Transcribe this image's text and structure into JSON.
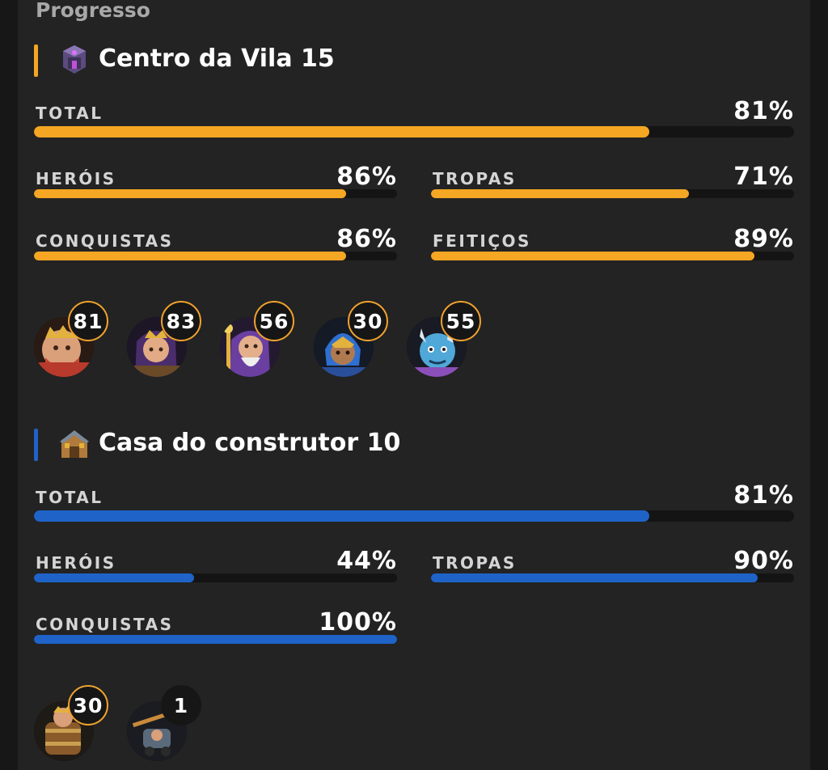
{
  "heading": "Progresso",
  "colors": {
    "village_accent": "#f5a623",
    "builder_accent": "#1f63c8"
  },
  "village": {
    "icon": "town-hall-icon",
    "title": "Centro da Vila 15",
    "total": {
      "label": "TOTAL",
      "value_text": "81%",
      "value": 81
    },
    "heroes": {
      "label": "HERÓIS",
      "value_text": "86%",
      "value": 86
    },
    "troops": {
      "label": "TROPAS",
      "value_text": "71%",
      "value": 71
    },
    "achievements": {
      "label": "CONQUISTAS",
      "value_text": "86%",
      "value": 86
    },
    "spells": {
      "label": "FEITIÇOS",
      "value_text": "89%",
      "value": 89
    },
    "hero_levels": [
      {
        "icon": "barbarian-king-icon",
        "level": "81"
      },
      {
        "icon": "archer-queen-icon",
        "level": "83"
      },
      {
        "icon": "grand-warden-icon",
        "level": "56"
      },
      {
        "icon": "royal-champion-icon",
        "level": "30"
      },
      {
        "icon": "minion-prince-icon",
        "level": "55"
      }
    ]
  },
  "builder": {
    "icon": "builder-hall-icon",
    "title": "Casa do construtor 10",
    "total": {
      "label": "TOTAL",
      "value_text": "81%",
      "value": 81
    },
    "heroes": {
      "label": "HERÓIS",
      "value_text": "44%",
      "value": 44
    },
    "troops": {
      "label": "TROPAS",
      "value_text": "90%",
      "value": 90
    },
    "achievements": {
      "label": "CONQUISTAS",
      "value_text": "100%",
      "value": 100
    },
    "hero_levels": [
      {
        "icon": "battle-machine-icon",
        "level": "30"
      },
      {
        "icon": "battle-copter-icon",
        "level": "1"
      }
    ]
  }
}
